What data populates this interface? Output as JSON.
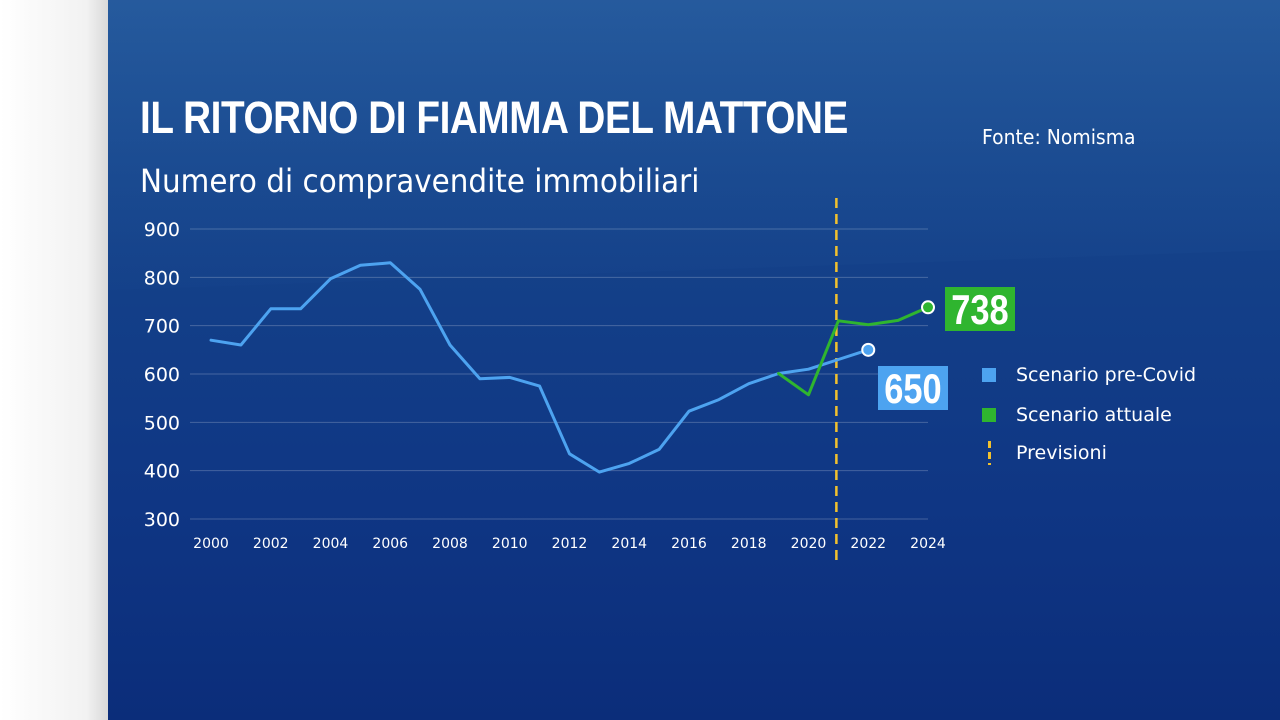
{
  "header": {
    "title": "IL RITORNO DI FIAMMA DEL MATTONE",
    "subtitle": "Numero di compravendite immobiliari",
    "source": "Fonte: Nomisma"
  },
  "legend": {
    "items": [
      {
        "label": "Scenario pre-Covid",
        "color": "#4da3f0"
      },
      {
        "label": "Scenario attuale",
        "color": "#2fb52f"
      },
      {
        "label": "Previsioni",
        "color": "#f2c12e"
      }
    ]
  },
  "colors": {
    "panel_top": "#1a4f93",
    "panel_bottom": "#0b2d7a",
    "pre_covid": "#4da3f0",
    "attuale": "#2fb52f",
    "forecast_line": "#f2c12e",
    "label_pre_covid_bg": "#4da3f0",
    "label_attuale_bg": "#2fb52f"
  },
  "chart_data": {
    "type": "line",
    "title": "IL RITORNO DI FIAMMA DEL MATTONE",
    "subtitle": "Numero di compravendite immobiliari",
    "xlabel": "",
    "ylabel": "",
    "ylim": [
      300,
      900
    ],
    "xlim": [
      2000,
      2024
    ],
    "yticks": [
      300,
      400,
      500,
      600,
      700,
      800,
      900
    ],
    "xticks": [
      2000,
      2002,
      2004,
      2006,
      2008,
      2010,
      2012,
      2014,
      2016,
      2018,
      2020,
      2022,
      2024
    ],
    "grid": true,
    "forecast_from": 2021,
    "series": [
      {
        "name": "Scenario pre-Covid",
        "color": "#4da3f0",
        "x": [
          2000,
          2001,
          2002,
          2003,
          2004,
          2005,
          2006,
          2007,
          2008,
          2009,
          2010,
          2011,
          2012,
          2013,
          2014,
          2015,
          2016,
          2017,
          2018,
          2019,
          2020,
          2021,
          2022
        ],
        "values": [
          670,
          660,
          735,
          735,
          797,
          825,
          830,
          775,
          660,
          590,
          593,
          575,
          435,
          397,
          415,
          444,
          523,
          547,
          580,
          601,
          610,
          630,
          650
        ],
        "end_label": "650"
      },
      {
        "name": "Scenario attuale",
        "color": "#2fb52f",
        "x": [
          2019,
          2020,
          2021,
          2022,
          2023,
          2024
        ],
        "values": [
          601,
          557,
          710,
          702,
          711,
          738
        ],
        "end_label": "738"
      }
    ]
  }
}
